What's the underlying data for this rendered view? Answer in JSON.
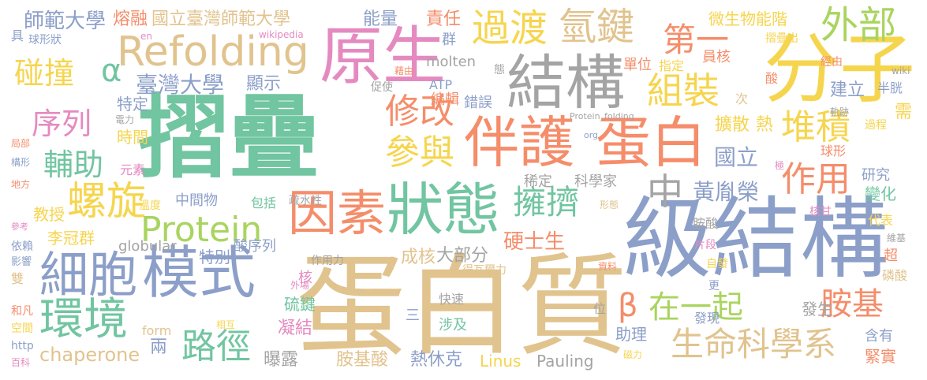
{
  "words": [
    {
      "text": "摺疊",
      "color": "#71c5a1"
    },
    {
      "text": "蛋白質",
      "color": "#e1c38e"
    },
    {
      "text": "級結構",
      "color": "#8c9fc9"
    },
    {
      "text": "分子",
      "color": "#f6d54e"
    },
    {
      "text": "原生",
      "color": "#e58ac1"
    },
    {
      "text": "結構",
      "color": "#a4a4a4"
    },
    {
      "text": "伴護",
      "color": "#f58d6a"
    },
    {
      "text": "蛋白",
      "color": "#f58d6a"
    },
    {
      "text": "狀態",
      "color": "#71c5a1"
    },
    {
      "text": "因素",
      "color": "#f58d6a"
    },
    {
      "text": "模式",
      "color": "#8c9fc9"
    },
    {
      "text": "細胞",
      "color": "#8c9fc9"
    },
    {
      "text": "環境",
      "color": "#71c5a1"
    },
    {
      "text": "螺旋",
      "color": "#f6d54e"
    },
    {
      "text": "Refolding",
      "color": "#e1c38e"
    },
    {
      "text": "Protein",
      "color": "#a9d45f"
    },
    {
      "text": "過渡",
      "color": "#f6d54e"
    },
    {
      "text": "氫鍵",
      "color": "#e1c38e"
    },
    {
      "text": "外部",
      "color": "#a9d45f"
    },
    {
      "text": "第一",
      "color": "#f58d6a"
    },
    {
      "text": "組裝",
      "color": "#f6d54e"
    },
    {
      "text": "堆積",
      "color": "#f6d54e"
    },
    {
      "text": "修改",
      "color": "#f58d6a"
    },
    {
      "text": "參與",
      "color": "#f6d54e"
    },
    {
      "text": "擁擠",
      "color": "#71c5a1"
    },
    {
      "text": "作用",
      "color": "#f58d6a"
    },
    {
      "text": "中",
      "color": "#a4a4a4"
    },
    {
      "text": "路徑",
      "color": "#71c5a1"
    },
    {
      "text": "在一起",
      "color": "#a9d45f"
    },
    {
      "text": "胺基",
      "color": "#f58d6a"
    },
    {
      "text": "生命科學系",
      "color": "#e1c38e"
    },
    {
      "text": "碰撞",
      "color": "#f6d54e"
    },
    {
      "text": "序列",
      "color": "#e58ac1"
    },
    {
      "text": "輔助",
      "color": "#71c5a1"
    },
    {
      "text": "α",
      "color": "#71c5a1"
    },
    {
      "text": "β",
      "color": "#f58d6a"
    },
    {
      "text": "師範大學",
      "color": "#8c9fc9"
    },
    {
      "text": "熔融",
      "color": "#f58d6a"
    },
    {
      "text": "國立臺灣師範大學",
      "color": "#e1c38e"
    },
    {
      "text": "能量",
      "color": "#8c9fc9"
    },
    {
      "text": "責任",
      "color": "#f58d6a"
    },
    {
      "text": "臺灣大學",
      "color": "#8c9fc9"
    },
    {
      "text": "顯示",
      "color": "#8c9fc9"
    },
    {
      "text": "黃胤榮",
      "color": "#8c9fc9"
    },
    {
      "text": "國立",
      "color": "#8c9fc9"
    },
    {
      "text": "擴散",
      "color": "#f6d54e"
    },
    {
      "text": "熱",
      "color": "#f6d54e"
    },
    {
      "text": "微生物能階",
      "color": "#f6d54e"
    },
    {
      "text": "單位",
      "color": "#f58d6a"
    },
    {
      "text": "指定",
      "color": "#f6d54e"
    },
    {
      "text": "員核",
      "color": "#f58d6a"
    },
    {
      "text": "建立",
      "color": "#8c9fc9"
    },
    {
      "text": "經由",
      "color": "#f58d6a"
    },
    {
      "text": "硬士生",
      "color": "#f58d6a"
    },
    {
      "text": "成核",
      "color": "#e1c38e"
    },
    {
      "text": "大部分",
      "color": "#a4a4a4"
    },
    {
      "text": "特別",
      "color": "#8c9fc9"
    },
    {
      "text": "酸序列",
      "color": "#8c9fc9"
    },
    {
      "text": "硫鍵",
      "color": "#71c5a1"
    },
    {
      "text": "凝結",
      "color": "#e58ac1"
    },
    {
      "text": "曝露",
      "color": "#a4a4a4"
    },
    {
      "text": "胺基酸",
      "color": "#e1c38e"
    },
    {
      "text": "熱休克",
      "color": "#8c9fc9"
    },
    {
      "text": "Linus",
      "color": "#f6d54e"
    },
    {
      "text": "Pauling",
      "color": "#a4a4a4"
    },
    {
      "text": "chaperone",
      "color": "#e1c38e"
    },
    {
      "text": "兩",
      "color": "#8c9fc9"
    },
    {
      "text": "教授",
      "color": "#f6d54e"
    },
    {
      "text": "李冠群",
      "color": "#f6d54e"
    },
    {
      "text": "特定",
      "color": "#8c9fc9"
    },
    {
      "text": "時間",
      "color": "#f6d54e"
    },
    {
      "text": "研究",
      "color": "#8c9fc9"
    },
    {
      "text": "變化",
      "color": "#71c5a1"
    },
    {
      "text": "需",
      "color": "#f6d54e"
    },
    {
      "text": "球形",
      "color": "#f58d6a"
    },
    {
      "text": "半胱",
      "color": "#8c9fc9"
    },
    {
      "text": "代表",
      "color": "#f6d54e"
    },
    {
      "text": "超",
      "color": "#f58d6a"
    },
    {
      "text": "磷酸",
      "color": "#e1c38e"
    },
    {
      "text": "含有",
      "color": "#8c9fc9"
    },
    {
      "text": "緊實",
      "color": "#f58d6a"
    },
    {
      "text": "發生",
      "color": "#a4a4a4"
    },
    {
      "text": "發現",
      "color": "#8c9fc9"
    },
    {
      "text": "助理",
      "color": "#8c9fc9"
    },
    {
      "text": "稀定",
      "color": "#a4a4a4"
    },
    {
      "text": "科學家",
      "color": "#a4a4a4"
    },
    {
      "text": "中間物",
      "color": "#8c9fc9"
    },
    {
      "text": "包括",
      "color": "#71c5a1"
    },
    {
      "text": "疏水性",
      "color": "#a4a4a4"
    },
    {
      "text": "globular",
      "color": "#a4a4a4"
    },
    {
      "text": "作用力",
      "color": "#a4a4a4"
    },
    {
      "text": "得瓦爾力",
      "color": "#e1c38e"
    },
    {
      "text": "快速",
      "color": "#a4a4a4"
    },
    {
      "text": "涉及",
      "color": "#71c5a1"
    },
    {
      "text": "三",
      "color": "#8c9fc9"
    },
    {
      "text": "位",
      "color": "#a4a4a4"
    },
    {
      "text": "更",
      "color": "#8c9fc9"
    },
    {
      "text": "自發",
      "color": "#f6d54e"
    },
    {
      "text": "片段",
      "color": "#e58ac1"
    },
    {
      "text": "胺酸",
      "color": "#a4a4a4"
    },
    {
      "text": "形態",
      "color": "#e1c38e"
    },
    {
      "text": "核甘",
      "color": "#e58ac1"
    },
    {
      "text": "元素",
      "color": "#e58ac1"
    },
    {
      "text": "電力",
      "color": "#a4a4a4"
    },
    {
      "text": "溫度",
      "color": "#f6d54e"
    },
    {
      "text": "外場",
      "color": "#e58ac1"
    },
    {
      "text": "核",
      "color": "#e58ac1"
    },
    {
      "text": "form",
      "color": "#e1c38e"
    },
    {
      "text": "相互",
      "color": "#f6d54e"
    },
    {
      "text": "資料",
      "color": "#f58d6a"
    },
    {
      "text": "molten",
      "color": "#a4a4a4"
    },
    {
      "text": "ATP",
      "color": "#8c9fc9"
    },
    {
      "text": "編輯",
      "color": "#f58d6a"
    },
    {
      "text": "錯誤",
      "color": "#8c9fc9"
    },
    {
      "text": "促使",
      "color": "#a4a4a4"
    },
    {
      "text": "藉由",
      "color": "#f58d6a"
    },
    {
      "text": "群",
      "color": "#8c9fc9"
    },
    {
      "text": "態",
      "color": "#a4a4a4"
    },
    {
      "text": "次",
      "color": "#e1c38e"
    },
    {
      "text": "酸",
      "color": "#f58d6a"
    },
    {
      "text": "摺疊出",
      "color": "#f6d54e"
    },
    {
      "text": "Protein_folding",
      "color": "#a4a4a4"
    },
    {
      "text": "org",
      "color": "#8c9fc9"
    },
    {
      "text": "wikipedia",
      "color": "#e58ac1"
    },
    {
      "text": "en",
      "color": "#e58ac1"
    },
    {
      "text": "wiki",
      "color": "#a4a4a4"
    },
    {
      "text": "軌跡",
      "color": "#a4a4a4"
    },
    {
      "text": "過程",
      "color": "#f6d54e"
    },
    {
      "text": "極",
      "color": "#e58ac1"
    },
    {
      "text": "維基",
      "color": "#a4a4a4"
    },
    {
      "text": "磁力",
      "color": "#f6d54e"
    },
    {
      "text": "具",
      "color": "#8c9fc9"
    },
    {
      "text": "球形狀",
      "color": "#8c9fc9"
    },
    {
      "text": "局部",
      "color": "#f58d6a"
    },
    {
      "text": "構形",
      "color": "#8c9fc9"
    },
    {
      "text": "地方",
      "color": "#f58d6a"
    },
    {
      "text": "參考",
      "color": "#e58ac1"
    },
    {
      "text": "依賴",
      "color": "#8c9fc9"
    },
    {
      "text": "影響",
      "color": "#8c9fc9"
    },
    {
      "text": "雙",
      "color": "#e1c38e"
    },
    {
      "text": "和凡",
      "color": "#f58d6a"
    },
    {
      "text": "空間",
      "color": "#f6d54e"
    },
    {
      "text": "http",
      "color": "#8c9fc9"
    },
    {
      "text": "百科",
      "color": "#e58ac1"
    }
  ]
}
